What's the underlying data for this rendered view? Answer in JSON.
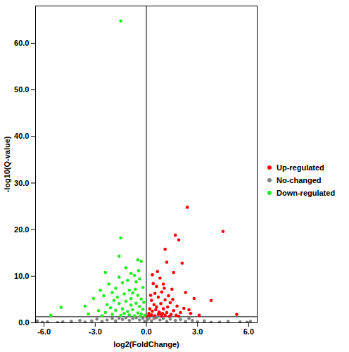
{
  "chart_data": {
    "type": "scatter",
    "x_label": "log2(FoldChange)",
    "y_label": "-log10(Q-value)",
    "xlim": [
      -6.5,
      6.5
    ],
    "ylim": [
      0,
      68
    ],
    "xticks": [
      {
        "value": -6,
        "label": "-6.0"
      },
      {
        "value": -3,
        "label": "-3.0"
      },
      {
        "value": 0,
        "label": "0.0"
      },
      {
        "value": 3,
        "label": "3.0"
      },
      {
        "value": 6,
        "label": "6.0"
      }
    ],
    "yticks": [
      {
        "value": 0,
        "label": "0.0"
      },
      {
        "value": 10,
        "label": "10.0"
      },
      {
        "value": 20,
        "label": "20.0"
      },
      {
        "value": 30,
        "label": "30.0"
      },
      {
        "value": 40,
        "label": "40.0"
      },
      {
        "value": 50,
        "label": "50.0"
      },
      {
        "value": 60,
        "label": "60.0"
      }
    ],
    "reference_lines": {
      "x": 0,
      "y": 1.3
    },
    "legend": "right",
    "grid": false,
    "series": [
      {
        "name": "Up-regulated",
        "color": "#ff0000",
        "x": [
          2.4,
          4.5,
          1.7,
          1.9,
          1.1,
          1.2,
          2.1,
          1.6,
          3.8,
          5.3,
          2.3,
          1.0,
          0.6,
          0.8,
          1.5,
          2.8,
          1.3,
          0.35,
          0.5,
          0.7,
          0.9,
          1.1,
          1.4,
          1.8,
          2.2,
          0.3,
          0.45,
          0.6,
          0.85,
          1.0,
          1.25,
          1.6,
          2.0,
          2.6,
          3.1,
          0.2,
          0.35,
          0.55,
          0.75,
          0.95,
          1.2,
          1.45,
          1.75,
          0.15,
          0.3,
          0.5,
          0.7,
          0.9,
          1.1,
          1.35,
          0.1,
          0.25,
          0.65,
          1.05,
          1.55,
          0.4,
          2.5,
          0.8,
          1.9,
          0.2
        ],
        "values": [
          24.8,
          19.6,
          18.8,
          17.8,
          15.8,
          13.0,
          12.8,
          10.8,
          4.8,
          1.8,
          6.5,
          8.3,
          7.8,
          9.6,
          7.2,
          5.2,
          5.8,
          10.3,
          6.3,
          5.5,
          6.6,
          4.9,
          4.3,
          3.6,
          3.1,
          4.8,
          3.9,
          3.4,
          4.1,
          3.0,
          3.4,
          2.6,
          2.2,
          2.0,
          1.6,
          3.0,
          2.5,
          2.8,
          2.3,
          2.0,
          2.2,
          1.8,
          1.6,
          2.0,
          1.7,
          1.5,
          1.8,
          1.4,
          1.6,
          1.4,
          1.4,
          5.9,
          11.0,
          7.4,
          5.0,
          8.4,
          2.8,
          1.9,
          1.4,
          1.4
        ]
      },
      {
        "name": "No-changed",
        "color": "#808080",
        "x": [
          -6.4,
          -6.1,
          -5.8,
          -4.9,
          -4.4,
          -3.9,
          -3.6,
          -3.2,
          -2.9,
          -2.6,
          -2.3,
          -2.0,
          -1.8,
          -1.6,
          -1.4,
          -1.2,
          -1.0,
          -0.8,
          -0.6,
          -0.4,
          -0.2,
          -0.1,
          0.05,
          0.15,
          0.3,
          0.45,
          0.6,
          0.8,
          1.0,
          1.2,
          1.4,
          1.7,
          2.0,
          2.3,
          2.7,
          3.0,
          3.4,
          3.8,
          4.3,
          4.8,
          5.5,
          5.9,
          6.1,
          -5.2,
          2.5
        ],
        "values": [
          0.4,
          0.1,
          0.2,
          0.2,
          0.3,
          0.5,
          0.15,
          0.4,
          0.8,
          0.3,
          0.6,
          0.9,
          0.4,
          1.0,
          0.7,
          1.1,
          0.5,
          0.9,
          1.1,
          0.6,
          1.0,
          0.3,
          0.6,
          1.0,
          0.4,
          0.9,
          1.1,
          0.6,
          0.9,
          0.3,
          0.8,
          0.5,
          0.7,
          0.3,
          0.5,
          0.2,
          0.4,
          0.1,
          0.15,
          0.3,
          0.2,
          0.1,
          0.3,
          0.05,
          0.9
        ]
      },
      {
        "name": "Down-regulated",
        "color": "#22ee22",
        "x": [
          -1.5,
          -1.5,
          -1.6,
          -0.5,
          -0.3,
          -1.2,
          -0.9,
          -0.7,
          -2.2,
          -2.7,
          -5.0,
          -5.6,
          -3.1,
          -2.5,
          -2.0,
          -1.8,
          -1.4,
          -1.1,
          -0.6,
          -0.4,
          -0.2,
          -1.9,
          -1.7,
          -1.3,
          -1.0,
          -0.8,
          -0.5,
          -0.3,
          -0.15,
          -2.3,
          -2.1,
          -1.6,
          -1.2,
          -0.9,
          -0.6,
          -0.4,
          -0.2,
          -2.8,
          -2.4,
          -1.8,
          -1.4,
          -1.1,
          -0.8,
          -0.5,
          -0.3,
          -0.1,
          -3.4,
          -2.6,
          -2.0,
          -1.5,
          -1.0,
          -0.7,
          -0.35,
          -1.3,
          -0.9,
          -0.65,
          -1.6,
          -2.4,
          -0.45,
          -3.6
        ],
        "values": [
          64.8,
          18.2,
          14.3,
          13.5,
          13.2,
          11.8,
          10.6,
          10.2,
          8.3,
          7.0,
          3.3,
          1.6,
          5.2,
          5.8,
          6.5,
          7.4,
          8.6,
          9.1,
          8.8,
          9.4,
          7.6,
          4.8,
          5.5,
          6.2,
          7.0,
          6.4,
          5.9,
          5.1,
          4.4,
          3.9,
          3.2,
          4.1,
          4.6,
          3.8,
          4.2,
          3.5,
          2.9,
          2.6,
          2.2,
          2.7,
          3.0,
          2.4,
          2.8,
          2.1,
          1.9,
          1.6,
          1.9,
          1.5,
          1.8,
          1.6,
          1.7,
          1.5,
          1.4,
          2.0,
          5.2,
          7.2,
          9.8,
          10.8,
          11.2,
          3.6
        ]
      }
    ]
  }
}
